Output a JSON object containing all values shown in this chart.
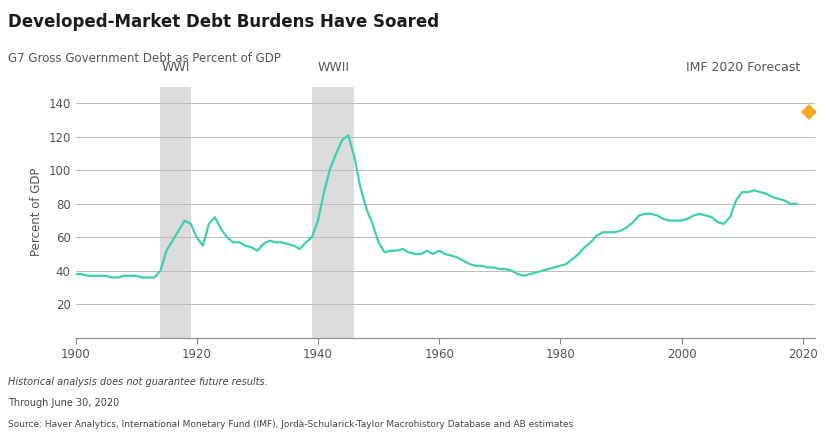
{
  "title": "Developed-Market Debt Burdens Have Soared",
  "subtitle": "G7 Gross Government Debt as Percent of GDP",
  "ylabel": "Percent of GDP",
  "xlim": [
    1900,
    2022
  ],
  "ylim": [
    0,
    150
  ],
  "yticks": [
    20,
    40,
    60,
    80,
    100,
    120,
    140
  ],
  "xticks": [
    1900,
    1920,
    1940,
    1960,
    1980,
    2000,
    2020
  ],
  "line_color": "#3ECFB2",
  "line_width": 1.6,
  "wwi_band": [
    1914,
    1919
  ],
  "wwii_band": [
    1939,
    1946
  ],
  "band_color": "#DCDCDC",
  "wwi_label": "WWI",
  "wwii_label": "WWII",
  "imf_label": "IMF 2020 Forecast",
  "imf_value": 135,
  "imf_year": 2020,
  "imf_marker_color": "#F5A623",
  "footnote1": "Historical analysis does not guarantee future results.",
  "footnote2": "Through June 30, 2020",
  "footnote3": "Source: Haver Analytics, International Monetary Fund (IMF), Jordà-Schularick-Taylor Macrohistory Database and AB estimates",
  "background_color": "#FFFFFF",
  "grid_color": "#BBBBBB",
  "title_color": "#1A1A1A",
  "axis_label_color": "#555555",
  "footnote_color": "#444444",
  "data": {
    "years": [
      1900,
      1901,
      1902,
      1903,
      1904,
      1905,
      1906,
      1907,
      1908,
      1909,
      1910,
      1911,
      1912,
      1913,
      1914,
      1915,
      1916,
      1917,
      1918,
      1919,
      1920,
      1921,
      1922,
      1923,
      1924,
      1925,
      1926,
      1927,
      1928,
      1929,
      1930,
      1931,
      1932,
      1933,
      1934,
      1935,
      1936,
      1937,
      1938,
      1939,
      1940,
      1941,
      1942,
      1943,
      1944,
      1945,
      1946,
      1947,
      1948,
      1949,
      1950,
      1951,
      1952,
      1953,
      1954,
      1955,
      1956,
      1957,
      1958,
      1959,
      1960,
      1961,
      1962,
      1963,
      1964,
      1965,
      1966,
      1967,
      1968,
      1969,
      1970,
      1971,
      1972,
      1973,
      1974,
      1975,
      1976,
      1977,
      1978,
      1979,
      1980,
      1981,
      1982,
      1983,
      1984,
      1985,
      1986,
      1987,
      1988,
      1989,
      1990,
      1991,
      1992,
      1993,
      1994,
      1995,
      1996,
      1997,
      1998,
      1999,
      2000,
      2001,
      2002,
      2003,
      2004,
      2005,
      2006,
      2007,
      2008,
      2009,
      2010,
      2011,
      2012,
      2013,
      2014,
      2015,
      2016,
      2017,
      2018,
      2019
    ],
    "values": [
      38,
      38,
      37,
      37,
      37,
      37,
      36,
      36,
      37,
      37,
      37,
      36,
      36,
      36,
      40,
      52,
      58,
      64,
      70,
      68,
      60,
      55,
      68,
      72,
      65,
      60,
      57,
      57,
      55,
      54,
      52,
      56,
      58,
      57,
      57,
      56,
      55,
      53,
      57,
      60,
      70,
      87,
      101,
      110,
      118,
      121,
      108,
      90,
      77,
      68,
      57,
      51,
      52,
      52,
      53,
      51,
      50,
      50,
      52,
      50,
      52,
      50,
      49,
      48,
      46,
      44,
      43,
      43,
      42,
      42,
      41,
      41,
      40,
      38,
      37,
      38,
      39,
      40,
      41,
      42,
      43,
      44,
      47,
      50,
      54,
      57,
      61,
      63,
      63,
      63,
      64,
      66,
      69,
      73,
      74,
      74,
      73,
      71,
      70,
      70,
      70,
      71,
      73,
      74,
      73,
      72,
      69,
      68,
      72,
      82,
      87,
      87,
      88,
      87,
      86,
      84,
      83,
      82,
      80,
      80
    ]
  }
}
